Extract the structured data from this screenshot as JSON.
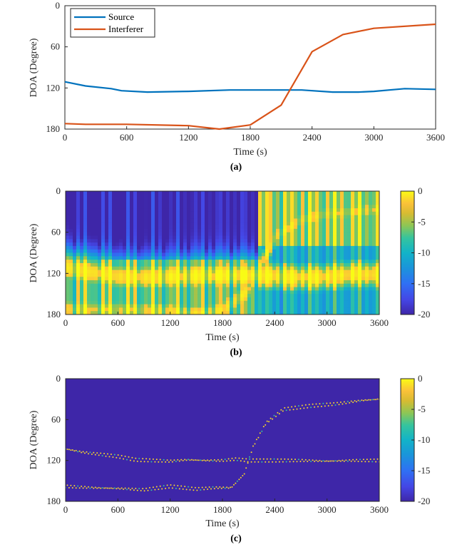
{
  "chart_data": [
    {
      "id": "a",
      "type": "line",
      "caption": "(a)",
      "xlabel": "Time (s)",
      "ylabel": "DOA (Degree)",
      "xlim": [
        0,
        3600
      ],
      "ylim": [
        0,
        180
      ],
      "y_reversed": true,
      "xticks": [
        "0",
        "600",
        "1200",
        "1800",
        "2400",
        "3000",
        "3600"
      ],
      "yticks": [
        "0",
        "60",
        "120",
        "180"
      ],
      "legend_position": "top-left",
      "series": [
        {
          "name": "Source",
          "color": "#0072BD",
          "x": [
            0,
            200,
            450,
            550,
            800,
            1200,
            1600,
            1900,
            2300,
            2600,
            2850,
            3000,
            3300,
            3600
          ],
          "y": [
            111,
            117,
            121,
            124,
            126,
            125,
            123,
            123,
            123,
            126,
            126,
            125,
            121,
            122
          ]
        },
        {
          "name": "Interferer",
          "color": "#D95319",
          "x": [
            0,
            200,
            600,
            1200,
            1500,
            1800,
            2100,
            2400,
            2700,
            3000,
            3600
          ],
          "y": [
            172,
            173,
            173,
            175,
            180,
            174,
            145,
            67,
            42,
            33,
            27
          ]
        }
      ]
    },
    {
      "id": "b",
      "type": "heatmap",
      "caption": "(b)",
      "xlabel": "Time (s)",
      "ylabel": "DOA (Degree)",
      "xlim": [
        0,
        3600
      ],
      "ylim": [
        0,
        180
      ],
      "y_reversed": true,
      "xticks": [
        "0",
        "600",
        "1200",
        "1800",
        "2400",
        "3000",
        "3600"
      ],
      "yticks": [
        "0",
        "60",
        "120",
        "180"
      ],
      "colorbar": {
        "range": [
          -20,
          0
        ],
        "ticks": [
          "0",
          "-5",
          "-10",
          "-15",
          "-20"
        ],
        "colormap": "parula"
      }
    },
    {
      "id": "c",
      "type": "scatter",
      "caption": "(c)",
      "xlabel": "Time (s)",
      "ylabel": "DOA (Degree)",
      "xlim": [
        0,
        3600
      ],
      "ylim": [
        0,
        180
      ],
      "y_reversed": true,
      "xticks": [
        "0",
        "600",
        "1200",
        "1800",
        "2400",
        "3000",
        "3600"
      ],
      "yticks": [
        "0",
        "60",
        "120",
        "180"
      ],
      "background": "#3E26A8",
      "colorbar": {
        "range": [
          -20,
          0
        ],
        "ticks": [
          "0",
          "-5",
          "-10",
          "-15",
          "-20"
        ],
        "colormap": "parula"
      },
      "tracks": [
        {
          "x": [
            0,
            200,
            400,
            600,
            800,
            1000,
            1200,
            1400,
            1600,
            1800,
            1950,
            2100,
            2400,
            2700,
            3000,
            3300,
            3600
          ],
          "y": [
            103,
            108,
            111,
            114,
            119,
            120,
            121,
            119,
            120,
            120,
            118,
            120,
            120,
            120,
            121,
            120,
            120
          ]
        },
        {
          "x": [
            0,
            300,
            600,
            900,
            1200,
            1500,
            1700,
            1900,
            2050,
            2150,
            2300,
            2500,
            2800,
            3100,
            3400,
            3600
          ],
          "y": [
            158,
            160,
            161,
            163,
            158,
            162,
            160,
            160,
            140,
            100,
            65,
            45,
            40,
            37,
            32,
            30
          ]
        }
      ]
    }
  ]
}
